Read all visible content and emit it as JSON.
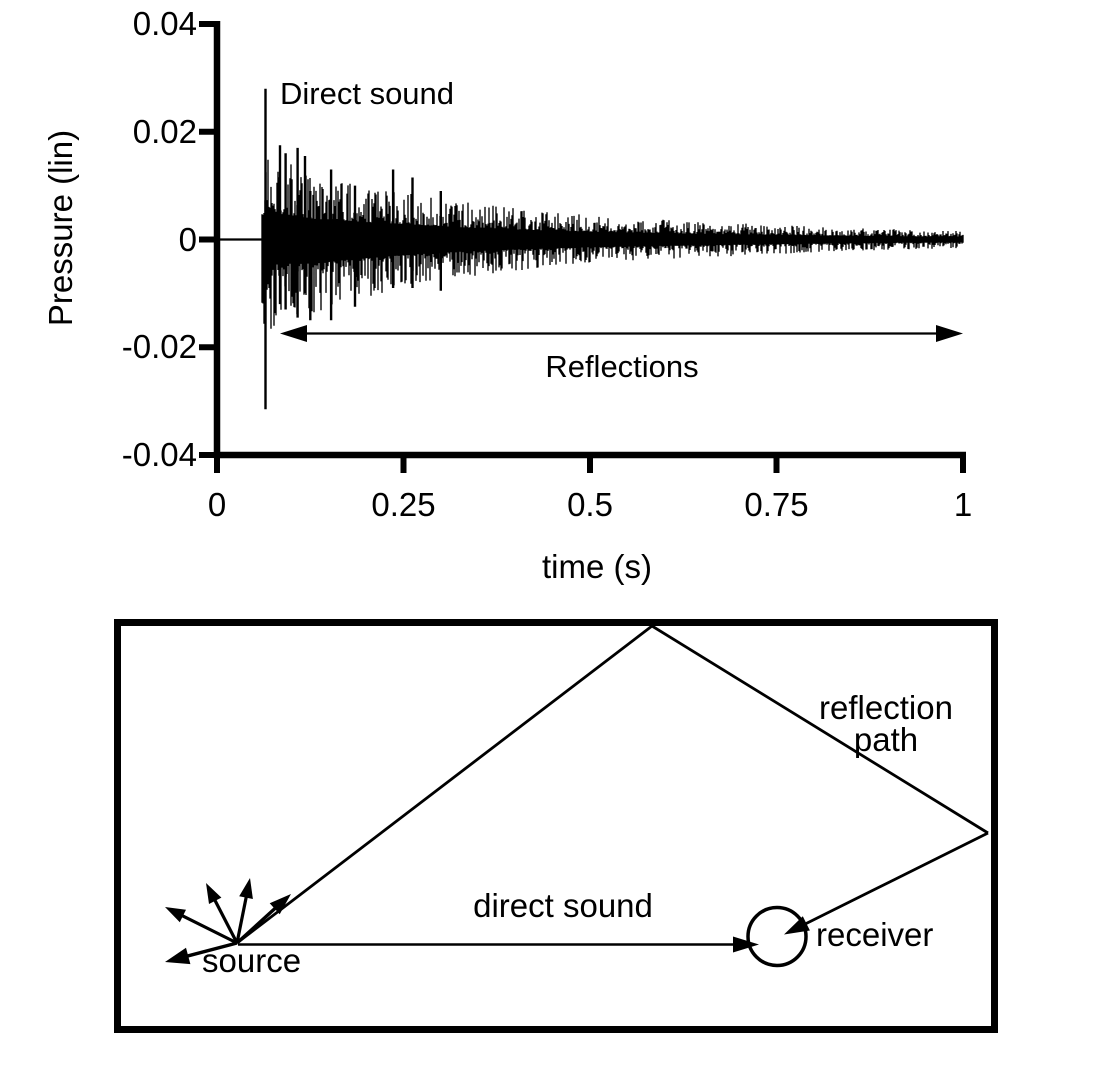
{
  "colors": {
    "ink": "#000000",
    "background": "#ffffff"
  },
  "chart_data": {
    "type": "line",
    "subtype": "room-impulse-response-waveform",
    "title": "",
    "xlabel": "time (s)",
    "ylabel": "Pressure (lin)",
    "xlim": [
      0,
      1
    ],
    "ylim": [
      -0.04,
      0.04
    ],
    "grid": false,
    "x_tick_values": [
      0,
      0.25,
      0.5,
      0.75,
      1
    ],
    "x_tick_labels": [
      "0",
      "0.25",
      "0.5",
      "0.75",
      "1"
    ],
    "y_tick_values": [
      0.04,
      0.02,
      0,
      -0.02,
      -0.04
    ],
    "y_tick_labels": [
      "0.04",
      "0.02",
      "0",
      "-0.02",
      "-0.04"
    ],
    "annotations": [
      {
        "text": "Direct sound",
        "points_to_t": 0.065,
        "points_to_pressure": 0.028
      },
      {
        "text": "Reflections",
        "double_headed_arrow": true,
        "arrow_from_t": 0.085,
        "arrow_to_t": 1.0,
        "arrow_at_pressure": -0.0175
      }
    ],
    "signal": {
      "description": "measured room impulse response: silence, strong direct-sound spike, then exponentially decaying dense reflections",
      "silence_until_t": 0.06,
      "direct_sound": {
        "t": 0.065,
        "peak_up": 0.028,
        "peak_down": -0.0315
      },
      "envelope_t_up_down": [
        [
          0.06,
          0.013,
          0.013
        ],
        [
          0.068,
          0.019,
          0.021
        ],
        [
          0.08,
          0.015,
          0.014
        ],
        [
          0.1,
          0.014,
          0.014
        ],
        [
          0.13,
          0.012,
          0.014
        ],
        [
          0.17,
          0.011,
          0.012
        ],
        [
          0.22,
          0.0095,
          0.01
        ],
        [
          0.27,
          0.0085,
          0.0085
        ],
        [
          0.33,
          0.007,
          0.007
        ],
        [
          0.4,
          0.0058,
          0.0058
        ],
        [
          0.5,
          0.0045,
          0.0045
        ],
        [
          0.62,
          0.0035,
          0.0035
        ],
        [
          0.75,
          0.0027,
          0.0027
        ],
        [
          0.88,
          0.002,
          0.002
        ],
        [
          1.0,
          0.0016,
          0.0016
        ]
      ],
      "early_peaks_t_up_down": [
        [
          0.0845,
          0.0175,
          0.012
        ],
        [
          0.092,
          0.016,
          0.013
        ],
        [
          0.108,
          0.017,
          0.0145
        ],
        [
          0.118,
          0.0155,
          0.01
        ],
        [
          0.125,
          0.009,
          0.015
        ],
        [
          0.153,
          0.013,
          0.015
        ],
        [
          0.185,
          0.01,
          0.0125
        ],
        [
          0.236,
          0.013,
          0.009
        ],
        [
          0.262,
          0.0115,
          0.009
        ],
        [
          0.3,
          0.009,
          0.0095
        ]
      ],
      "noise_seed": 7
    }
  },
  "diagram": {
    "description": "rectangular room, sound paths from source to receiver",
    "labels": {
      "source": "source",
      "direct_sound": "direct sound",
      "receiver": "receiver",
      "reflection_line1": "reflection",
      "reflection_line2": "path"
    }
  }
}
